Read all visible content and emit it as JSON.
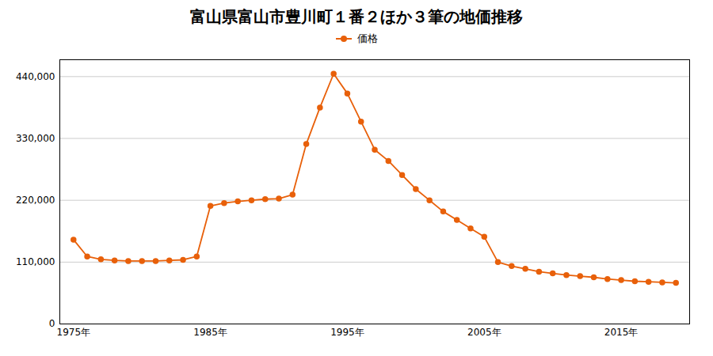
{
  "chart_data": {
    "type": "line",
    "title": "富山県富山市豊川町１番２ほか３筆の地価推移",
    "x": [
      1975,
      1976,
      1977,
      1978,
      1979,
      1980,
      1981,
      1982,
      1983,
      1984,
      1985,
      1986,
      1987,
      1988,
      1989,
      1990,
      1991,
      1992,
      1993,
      1994,
      1995,
      1996,
      1997,
      1998,
      1999,
      2000,
      2001,
      2002,
      2003,
      2004,
      2005,
      2006,
      2007,
      2008,
      2009,
      2010,
      2011,
      2012,
      2013,
      2014,
      2015,
      2016,
      2017,
      2018,
      2019
    ],
    "series": [
      {
        "name": "価格",
        "color": "#e8600a",
        "marker": "circle",
        "line_style": "solid",
        "values": [
          150000,
          120000,
          115000,
          113000,
          112000,
          112000,
          112000,
          113000,
          114000,
          120000,
          210000,
          215000,
          218000,
          220000,
          222000,
          223000,
          230000,
          320000,
          385000,
          445000,
          410000,
          360000,
          310000,
          290000,
          265000,
          240000,
          220000,
          200000,
          185000,
          170000,
          155000,
          110000,
          103000,
          98000,
          93000,
          90000,
          87000,
          85000,
          83000,
          80000,
          78000,
          76000,
          75000,
          74000,
          73000
        ]
      }
    ],
    "xlim": [
      1974,
      2020
    ],
    "xticks": [
      {
        "value": 1975,
        "label": "1975年"
      },
      {
        "value": 1985,
        "label": "1985年"
      },
      {
        "value": 1995,
        "label": "1995年"
      },
      {
        "value": 2005,
        "label": "2005年"
      },
      {
        "value": 2015,
        "label": "2015年"
      }
    ],
    "ylim": [
      0,
      470000
    ],
    "yticks": [
      0,
      {
        "value": 110000,
        "label": "110,000"
      },
      {
        "value": 220000,
        "label": "220,000"
      },
      {
        "value": 330000,
        "label": "330,000"
      },
      {
        "value": 440000,
        "label": "440,000"
      }
    ],
    "grid": "y",
    "legend": "top"
  }
}
